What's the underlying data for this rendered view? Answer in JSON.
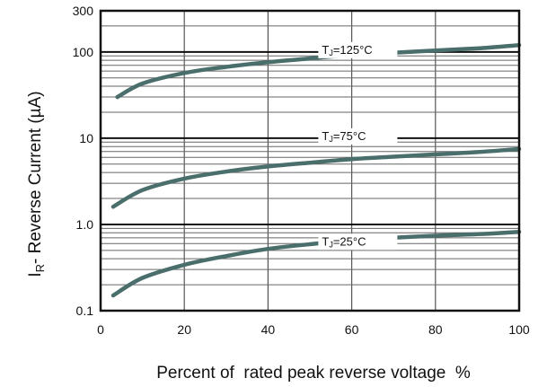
{
  "chart_data": {
    "type": "line",
    "title": "",
    "xlabel": "Percent of  rated peak reverse voltage  %",
    "ylabel": {
      "prefix": "I",
      "sub": "R",
      "text": "- Reverse Current (µA)"
    },
    "xlim": [
      0,
      100
    ],
    "ylim": [
      0.1,
      300
    ],
    "y_scale": "log",
    "x_ticks": [
      "0",
      "20",
      "40",
      "60",
      "80",
      "100"
    ],
    "y_ticks": [
      {
        "value": 0.1,
        "label": "0.1"
      },
      {
        "value": 1,
        "label": "1.0"
      },
      {
        "value": 10,
        "label": "10"
      },
      {
        "value": 100,
        "label": "100"
      },
      {
        "value": 300,
        "label": "300"
      }
    ],
    "grid": true,
    "line_color": "#4a6e6b",
    "series": [
      {
        "label": {
          "prefix": "T",
          "sub": "J",
          "text": "=125°C"
        },
        "label_at": [
          43,
          100
        ],
        "x": [
          4,
          10,
          20,
          30,
          40,
          50,
          60,
          70,
          80,
          90,
          100
        ],
        "y": [
          30,
          43,
          57,
          67,
          76,
          84,
          92,
          98,
          104,
          110,
          120
        ]
      },
      {
        "label": {
          "prefix": "T",
          "sub": "J",
          "text": "=75°C"
        },
        "label_at": [
          43,
          10
        ],
        "x": [
          3,
          10,
          20,
          30,
          40,
          50,
          60,
          70,
          80,
          90,
          100
        ],
        "y": [
          1.6,
          2.5,
          3.4,
          4.1,
          4.7,
          5.2,
          5.7,
          6.1,
          6.5,
          6.9,
          7.5
        ]
      },
      {
        "label": {
          "prefix": "T",
          "sub": "J",
          "text": "=25°C"
        },
        "label_at": [
          43,
          0.6
        ],
        "x": [
          3,
          10,
          20,
          30,
          40,
          50,
          60,
          70,
          80,
          90,
          100
        ],
        "y": [
          0.15,
          0.24,
          0.34,
          0.43,
          0.52,
          0.59,
          0.65,
          0.7,
          0.74,
          0.77,
          0.82
        ]
      }
    ]
  }
}
